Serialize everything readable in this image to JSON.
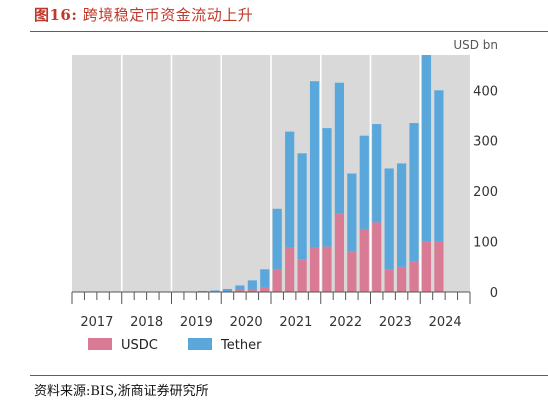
{
  "figure": {
    "label": "图16:",
    "title": "跨境稳定币资金流动上升"
  },
  "source": "资料来源:BIS,浙商证券研究所",
  "chart_data": {
    "type": "bar",
    "stacked": true,
    "unit_label": "USD bn",
    "y_axis_position": "right",
    "ylim": [
      0,
      470
    ],
    "y_ticks": [
      0,
      100,
      200,
      300,
      400
    ],
    "x_year_labels": [
      "2017",
      "2018",
      "2019",
      "2020",
      "2021",
      "2022",
      "2023",
      "2024"
    ],
    "periods_per_year": 4,
    "grid": "vertical bands, year boundaries",
    "legend_position": "bottom-left",
    "colors": {
      "USDC": "#d97b94",
      "Tether": "#5aa7dc",
      "plot_bg": "#d9d9d9",
      "band": "#ffffff"
    },
    "series": [
      {
        "name": "USDC",
        "values": [
          0,
          0,
          0,
          0,
          0,
          0,
          0,
          0,
          0,
          0,
          0,
          0,
          2,
          5,
          5,
          10,
          45,
          88,
          65,
          88,
          90,
          155,
          80,
          125,
          138,
          45,
          50,
          60,
          100,
          100
        ]
      },
      {
        "name": "Tether",
        "values": [
          0,
          0,
          0,
          0,
          0,
          0,
          0,
          0,
          0,
          0,
          2,
          3,
          4,
          8,
          18,
          35,
          120,
          230,
          210,
          330,
          235,
          260,
          155,
          185,
          195,
          200,
          205,
          275,
          370,
          300
        ]
      }
    ]
  }
}
